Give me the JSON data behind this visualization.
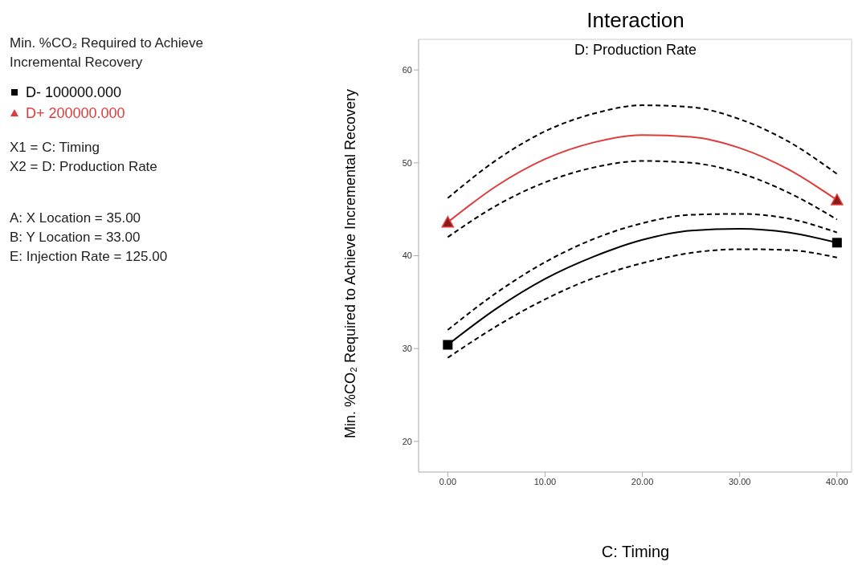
{
  "chart_data": {
    "type": "line",
    "title": "Interaction",
    "subtitle": "D: Production Rate",
    "xlabel": "C: Timing",
    "ylabel": "Min. %CO₂ Required to Achieve Incremental Recovery",
    "annotations": [
      "Min. %CO₂ Required to Achieve Incremental Recovery",
      "X1 = C: Timing",
      "X2 = D: Production Rate",
      "A: X Location = 35.00",
      "B: Y Location = 33.00",
      "E: Injection Rate = 125.00"
    ],
    "xlim": [
      -3,
      41.5
    ],
    "ylim": [
      16.7,
      63.3
    ],
    "xticks": [
      {
        "value": 0,
        "label": "0.00"
      },
      {
        "value": 10,
        "label": "10.00"
      },
      {
        "value": 20,
        "label": "20.00"
      },
      {
        "value": 30,
        "label": "30.00"
      },
      {
        "value": 40,
        "label": "40.00"
      }
    ],
    "yticks": [
      20,
      30,
      40,
      50,
      60
    ],
    "grid": false,
    "legend": "top left",
    "series": [
      {
        "color": "#000000",
        "x": [
          0,
          5,
          10,
          15,
          20,
          25,
          30,
          35,
          40
        ],
        "values": [
          30.4,
          34.3,
          37.5,
          39.9,
          41.7,
          42.7,
          42.9,
          42.5,
          41.4
        ]
      },
      {
        "color": "#000000",
        "line_style": "dashed",
        "x": [
          0,
          5,
          10,
          15,
          20,
          25,
          30,
          35,
          40
        ],
        "values": [
          29.0,
          32.4,
          35.3,
          37.6,
          39.2,
          40.3,
          40.7,
          40.6,
          39.8
        ]
      },
      {
        "color": "#000000",
        "line_style": "dashed",
        "x": [
          0,
          5,
          10,
          15,
          20,
          25,
          30,
          35,
          40
        ],
        "values": [
          32.0,
          36.0,
          39.3,
          41.8,
          43.5,
          44.4,
          44.5,
          44.0,
          42.5
        ]
      },
      {
        "color": "#e03a3a",
        "x": [
          0,
          5,
          10,
          15,
          20,
          25,
          30,
          35,
          40
        ],
        "values": [
          43.6,
          47.5,
          50.4,
          52.2,
          53.0,
          52.8,
          51.6,
          49.3,
          46.0
        ]
      },
      {
        "color": "#000000",
        "line_style": "dashed",
        "x": [
          0,
          5,
          10,
          15,
          20,
          25,
          30,
          35,
          40
        ],
        "values": [
          42.0,
          45.4,
          47.9,
          49.5,
          50.2,
          50.0,
          48.9,
          46.8,
          43.9
        ]
      },
      {
        "color": "#000000",
        "line_style": "dashed",
        "x": [
          0,
          5,
          10,
          15,
          20,
          25,
          30,
          35,
          40
        ],
        "values": [
          46.2,
          50.3,
          53.4,
          55.3,
          56.2,
          56.0,
          54.7,
          52.3,
          48.8
        ]
      },
      {
        "type": "scatter",
        "name": "D- 100000.000",
        "color": "#000000",
        "marker": "square",
        "x": [
          0,
          40
        ],
        "values": [
          30.4,
          41.4
        ]
      },
      {
        "type": "scatter",
        "name": "D+ 200000.000",
        "color": "#e03a3a",
        "marker": "triangle",
        "x": [
          0,
          40
        ],
        "values": [
          43.6,
          46.0
        ]
      }
    ]
  }
}
